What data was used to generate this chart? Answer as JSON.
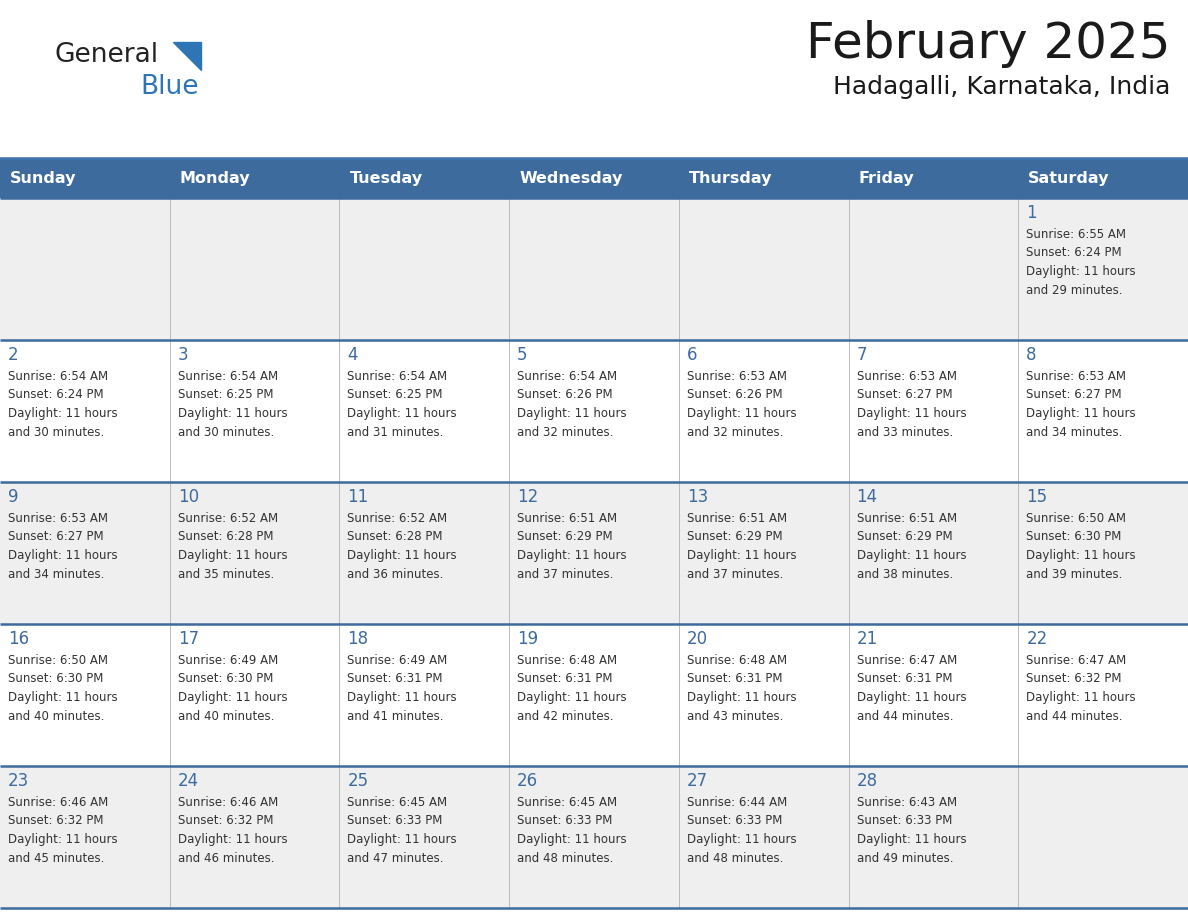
{
  "title": "February 2025",
  "subtitle": "Hadagalli, Karnataka, India",
  "header_bg_color": "#3D6B9E",
  "header_text_color": "#FFFFFF",
  "cell_bg_light": "#EFEFEF",
  "cell_bg_white": "#FFFFFF",
  "day_number_color": "#3D6B9E",
  "text_color": "#333333",
  "border_color": "#3D6B9E",
  "separator_color": "#4472A8",
  "days_of_week": [
    "Sunday",
    "Monday",
    "Tuesday",
    "Wednesday",
    "Thursday",
    "Friday",
    "Saturday"
  ],
  "calendar_data": [
    [
      {
        "day": "",
        "sunrise": "",
        "sunset": "",
        "daylight": ""
      },
      {
        "day": "",
        "sunrise": "",
        "sunset": "",
        "daylight": ""
      },
      {
        "day": "",
        "sunrise": "",
        "sunset": "",
        "daylight": ""
      },
      {
        "day": "",
        "sunrise": "",
        "sunset": "",
        "daylight": ""
      },
      {
        "day": "",
        "sunrise": "",
        "sunset": "",
        "daylight": ""
      },
      {
        "day": "",
        "sunrise": "",
        "sunset": "",
        "daylight": ""
      },
      {
        "day": "1",
        "sunrise": "6:55 AM",
        "sunset": "6:24 PM",
        "daylight": "11 hours and 29 minutes."
      }
    ],
    [
      {
        "day": "2",
        "sunrise": "6:54 AM",
        "sunset": "6:24 PM",
        "daylight": "11 hours and 30 minutes."
      },
      {
        "day": "3",
        "sunrise": "6:54 AM",
        "sunset": "6:25 PM",
        "daylight": "11 hours and 30 minutes."
      },
      {
        "day": "4",
        "sunrise": "6:54 AM",
        "sunset": "6:25 PM",
        "daylight": "11 hours and 31 minutes."
      },
      {
        "day": "5",
        "sunrise": "6:54 AM",
        "sunset": "6:26 PM",
        "daylight": "11 hours and 32 minutes."
      },
      {
        "day": "6",
        "sunrise": "6:53 AM",
        "sunset": "6:26 PM",
        "daylight": "11 hours and 32 minutes."
      },
      {
        "day": "7",
        "sunrise": "6:53 AM",
        "sunset": "6:27 PM",
        "daylight": "11 hours and 33 minutes."
      },
      {
        "day": "8",
        "sunrise": "6:53 AM",
        "sunset": "6:27 PM",
        "daylight": "11 hours and 34 minutes."
      }
    ],
    [
      {
        "day": "9",
        "sunrise": "6:53 AM",
        "sunset": "6:27 PM",
        "daylight": "11 hours and 34 minutes."
      },
      {
        "day": "10",
        "sunrise": "6:52 AM",
        "sunset": "6:28 PM",
        "daylight": "11 hours and 35 minutes."
      },
      {
        "day": "11",
        "sunrise": "6:52 AM",
        "sunset": "6:28 PM",
        "daylight": "11 hours and 36 minutes."
      },
      {
        "day": "12",
        "sunrise": "6:51 AM",
        "sunset": "6:29 PM",
        "daylight": "11 hours and 37 minutes."
      },
      {
        "day": "13",
        "sunrise": "6:51 AM",
        "sunset": "6:29 PM",
        "daylight": "11 hours and 37 minutes."
      },
      {
        "day": "14",
        "sunrise": "6:51 AM",
        "sunset": "6:29 PM",
        "daylight": "11 hours and 38 minutes."
      },
      {
        "day": "15",
        "sunrise": "6:50 AM",
        "sunset": "6:30 PM",
        "daylight": "11 hours and 39 minutes."
      }
    ],
    [
      {
        "day": "16",
        "sunrise": "6:50 AM",
        "sunset": "6:30 PM",
        "daylight": "11 hours and 40 minutes."
      },
      {
        "day": "17",
        "sunrise": "6:49 AM",
        "sunset": "6:30 PM",
        "daylight": "11 hours and 40 minutes."
      },
      {
        "day": "18",
        "sunrise": "6:49 AM",
        "sunset": "6:31 PM",
        "daylight": "11 hours and 41 minutes."
      },
      {
        "day": "19",
        "sunrise": "6:48 AM",
        "sunset": "6:31 PM",
        "daylight": "11 hours and 42 minutes."
      },
      {
        "day": "20",
        "sunrise": "6:48 AM",
        "sunset": "6:31 PM",
        "daylight": "11 hours and 43 minutes."
      },
      {
        "day": "21",
        "sunrise": "6:47 AM",
        "sunset": "6:31 PM",
        "daylight": "11 hours and 44 minutes."
      },
      {
        "day": "22",
        "sunrise": "6:47 AM",
        "sunset": "6:32 PM",
        "daylight": "11 hours and 44 minutes."
      }
    ],
    [
      {
        "day": "23",
        "sunrise": "6:46 AM",
        "sunset": "6:32 PM",
        "daylight": "11 hours and 45 minutes."
      },
      {
        "day": "24",
        "sunrise": "6:46 AM",
        "sunset": "6:32 PM",
        "daylight": "11 hours and 46 minutes."
      },
      {
        "day": "25",
        "sunrise": "6:45 AM",
        "sunset": "6:33 PM",
        "daylight": "11 hours and 47 minutes."
      },
      {
        "day": "26",
        "sunrise": "6:45 AM",
        "sunset": "6:33 PM",
        "daylight": "11 hours and 48 minutes."
      },
      {
        "day": "27",
        "sunrise": "6:44 AM",
        "sunset": "6:33 PM",
        "daylight": "11 hours and 48 minutes."
      },
      {
        "day": "28",
        "sunrise": "6:43 AM",
        "sunset": "6:33 PM",
        "daylight": "11 hours and 49 minutes."
      },
      {
        "day": "",
        "sunrise": "",
        "sunset": "",
        "daylight": ""
      }
    ]
  ]
}
